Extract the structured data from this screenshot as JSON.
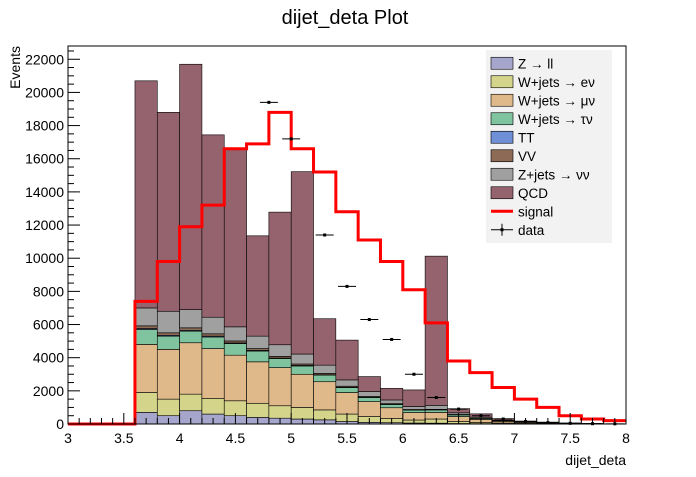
{
  "chart_data": {
    "type": "bar",
    "title": "dijet_deta Plot",
    "xlabel": "dijet_deta",
    "ylabel": "Events",
    "xlim": [
      3,
      8
    ],
    "ylim": [
      0,
      22800
    ],
    "xticks": [
      3,
      3.5,
      4,
      4.5,
      5,
      5.5,
      6,
      6.5,
      7,
      7.5,
      8
    ],
    "xtick_labels": [
      "3",
      "3.5",
      "4",
      "4.5",
      "5",
      "5.5",
      "6",
      "6.5",
      "7",
      "7.5",
      "8"
    ],
    "yticks": [
      0,
      2000,
      4000,
      6000,
      8000,
      10000,
      12000,
      14000,
      16000,
      18000,
      20000,
      22000
    ],
    "ytick_labels": [
      "0",
      "2000",
      "4000",
      "6000",
      "8000",
      "10000",
      "12000",
      "14000",
      "16000",
      "18000",
      "20000",
      "22000"
    ],
    "bin_edges": [
      3.0,
      3.2,
      3.4,
      3.6,
      3.8,
      4.0,
      4.2,
      4.4,
      4.6,
      4.8,
      5.0,
      5.2,
      5.4,
      5.6,
      5.8,
      6.0,
      6.2,
      6.4,
      6.6,
      6.8,
      7.0,
      7.2,
      7.4,
      7.6,
      7.8,
      8.0
    ],
    "legend_position": "top-right",
    "series": [
      {
        "name": "Z → ll",
        "color": "#a6a6cc",
        "values": [
          0,
          0,
          0,
          700,
          500,
          800,
          600,
          500,
          400,
          350,
          300,
          250,
          150,
          100,
          80,
          60,
          50,
          30,
          20,
          10,
          5,
          3,
          2,
          1,
          0
        ]
      },
      {
        "name": "W+jets → eν",
        "color": "#d4d48a",
        "values": [
          0,
          0,
          0,
          1200,
          1000,
          1000,
          950,
          900,
          850,
          750,
          700,
          600,
          450,
          350,
          250,
          180,
          250,
          120,
          80,
          50,
          30,
          20,
          10,
          5,
          2
        ]
      },
      {
        "name": "W+jets → μν",
        "color": "#e0b98a",
        "values": [
          0,
          0,
          0,
          2900,
          3000,
          3100,
          3000,
          2750,
          2500,
          2300,
          2000,
          1700,
          1300,
          900,
          650,
          450,
          400,
          300,
          180,
          100,
          60,
          40,
          20,
          10,
          5
        ]
      },
      {
        "name": "W+jets → τν",
        "color": "#7fc49e",
        "values": [
          0,
          0,
          0,
          900,
          800,
          700,
          700,
          700,
          650,
          550,
          500,
          400,
          300,
          250,
          200,
          150,
          150,
          100,
          60,
          30,
          20,
          10,
          5,
          3,
          1
        ]
      },
      {
        "name": "TT",
        "color": "#6f8fd6",
        "values": [
          0,
          0,
          0,
          60,
          50,
          50,
          50,
          40,
          40,
          30,
          30,
          20,
          20,
          10,
          10,
          5,
          5,
          5,
          2,
          1,
          1,
          0,
          0,
          0,
          0
        ]
      },
      {
        "name": "VV",
        "color": "#8c6a55",
        "values": [
          0,
          0,
          0,
          160,
          150,
          150,
          140,
          120,
          110,
          100,
          90,
          80,
          60,
          50,
          40,
          30,
          30,
          20,
          10,
          5,
          3,
          2,
          1,
          0,
          0
        ]
      },
      {
        "name": "Z+jets → νν",
        "color": "#a0a0a0",
        "values": [
          0,
          0,
          0,
          1080,
          1300,
          1100,
          1000,
          850,
          750,
          700,
          600,
          500,
          380,
          300,
          220,
          180,
          240,
          100,
          60,
          30,
          20,
          10,
          5,
          2,
          1
        ]
      },
      {
        "name": "QCD",
        "color": "#95636e",
        "values": [
          0,
          0,
          0,
          13700,
          12000,
          14800,
          11000,
          10700,
          6050,
          8000,
          11000,
          2800,
          2400,
          900,
          700,
          1000,
          9000,
          250,
          200,
          100,
          40,
          30,
          20,
          10,
          5
        ]
      }
    ],
    "signal": {
      "name": "signal",
      "color": "#ff0000",
      "values": [
        0,
        0,
        0,
        7400,
        9800,
        11900,
        13200,
        16600,
        16900,
        18800,
        16600,
        15200,
        12800,
        11100,
        9800,
        8100,
        6100,
        3800,
        3100,
        2200,
        1500,
        1000,
        500,
        300,
        200
      ]
    },
    "data": {
      "name": "data",
      "x": [
        4.8,
        5.0,
        5.3,
        5.5,
        5.7,
        5.9,
        6.1,
        6.3,
        6.5,
        6.7,
        6.9,
        7.1,
        7.3,
        7.5,
        7.7,
        7.9
      ],
      "y": [
        19400,
        17200,
        11400,
        8300,
        6300,
        5100,
        3000,
        1600,
        900,
        500,
        300,
        150,
        80,
        40,
        20,
        10
      ]
    }
  }
}
